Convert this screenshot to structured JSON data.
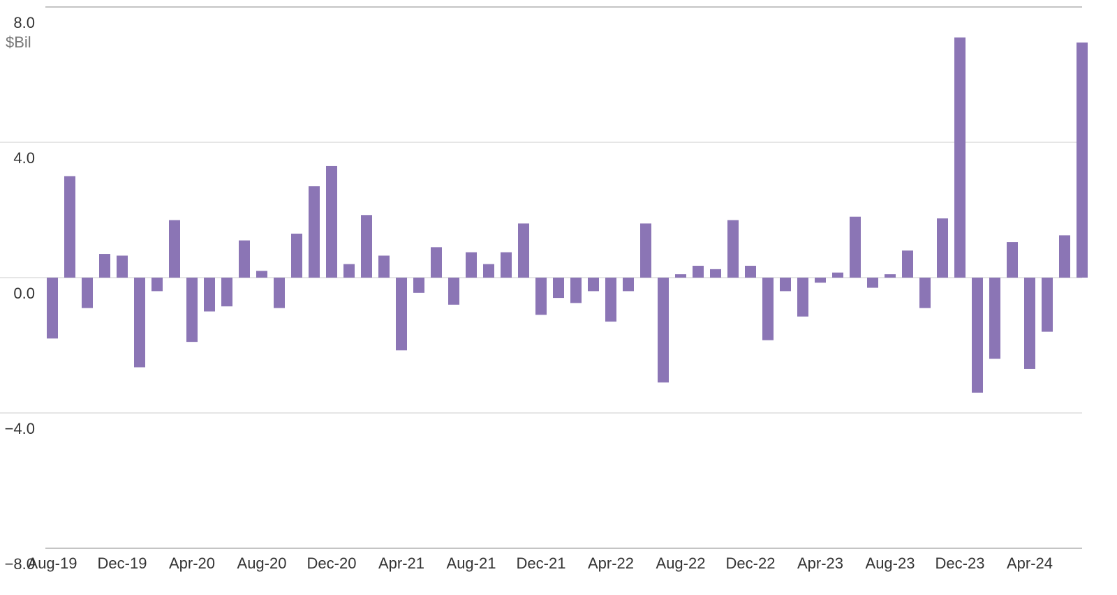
{
  "chart_data": {
    "type": "bar",
    "y_unit": "$Bil",
    "categories": [
      "Aug-19",
      null,
      null,
      null,
      "Dec-19",
      null,
      null,
      null,
      "Apr-20",
      null,
      null,
      null,
      "Aug-20",
      null,
      null,
      null,
      "Dec-20",
      null,
      null,
      null,
      "Apr-21",
      null,
      null,
      null,
      "Aug-21",
      null,
      null,
      null,
      "Dec-21",
      null,
      null,
      null,
      "Apr-22",
      null,
      null,
      null,
      "Aug-22",
      null,
      null,
      null,
      "Dec-22",
      null,
      null,
      null,
      "Apr-23",
      null,
      null,
      null,
      "Aug-23",
      null,
      null,
      null,
      "Dec-23",
      null,
      null,
      null,
      "Apr-24",
      null,
      null,
      null
    ],
    "values": [
      -1.8,
      3.0,
      -0.9,
      0.7,
      0.65,
      -2.65,
      -0.4,
      1.7,
      -1.9,
      -1.0,
      -0.85,
      1.1,
      0.2,
      -0.9,
      1.3,
      2.7,
      3.3,
      0.4,
      1.85,
      0.65,
      -2.15,
      -0.45,
      0.9,
      -0.8,
      0.75,
      0.4,
      0.75,
      1.6,
      -1.1,
      -0.6,
      -0.75,
      -0.4,
      -1.3,
      -0.4,
      1.6,
      -3.1,
      0.1,
      0.35,
      0.25,
      1.7,
      0.35,
      -1.85,
      -0.4,
      -1.15,
      -0.15,
      0.15,
      1.8,
      -0.3,
      0.1,
      0.8,
      -0.9,
      1.75,
      7.1,
      -3.4,
      -2.4,
      1.05,
      -2.7,
      -1.6,
      1.25,
      6.95
    ],
    "color": "#8b75b5",
    "ylim": [
      -8,
      8
    ],
    "yticks": [
      {
        "value": -8,
        "label": "−8.0"
      },
      {
        "value": -4,
        "label": "−4.0"
      },
      {
        "value": 0,
        "label": "0.0"
      },
      {
        "value": 4,
        "label": "4.0"
      },
      {
        "value": 8,
        "label": "8.0"
      }
    ],
    "grid": true
  }
}
